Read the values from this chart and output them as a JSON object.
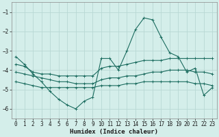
{
  "xlabel": "Humidex (Indice chaleur)",
  "bg_color": "#d4eeea",
  "grid_color": "#b8d8d4",
  "line_color": "#1a6b5e",
  "xlim": [
    -0.5,
    23.5
  ],
  "ylim": [
    -6.5,
    -0.5
  ],
  "yticks": [
    -6,
    -5,
    -4,
    -3,
    -2,
    -1
  ],
  "xticks": [
    0,
    1,
    2,
    3,
    4,
    5,
    6,
    7,
    8,
    9,
    10,
    11,
    12,
    13,
    14,
    15,
    16,
    17,
    18,
    19,
    20,
    21,
    22,
    23
  ],
  "series": {
    "line1": {
      "x": [
        0,
        1,
        2,
        3,
        4,
        5,
        6,
        7,
        8,
        9,
        10,
        11,
        12,
        13,
        14,
        15,
        16,
        17,
        18,
        19,
        20,
        21,
        22,
        23
      ],
      "y": [
        -3.3,
        -3.7,
        -4.2,
        -4.6,
        -5.1,
        -5.5,
        -5.8,
        -6.0,
        -5.6,
        -5.4,
        -3.4,
        -3.4,
        -4.0,
        -3.0,
        -1.9,
        -1.3,
        -1.4,
        -2.3,
        -3.1,
        -3.3,
        -4.1,
        -3.9,
        -5.3,
        -4.9
      ]
    },
    "line2": {
      "x": [
        0,
        1,
        2,
        3,
        4,
        5,
        6,
        7,
        8,
        9,
        10,
        11,
        12,
        13,
        14,
        15,
        16,
        17,
        18,
        19,
        20,
        21,
        22,
        23
      ],
      "y": [
        -3.7,
        -3.8,
        -4.1,
        -4.2,
        -4.2,
        -4.3,
        -4.3,
        -4.3,
        -4.3,
        -4.3,
        -3.9,
        -3.8,
        -3.8,
        -3.7,
        -3.6,
        -3.5,
        -3.5,
        -3.5,
        -3.4,
        -3.4,
        -3.4,
        -3.4,
        -3.4,
        -3.4
      ]
    },
    "line3": {
      "x": [
        0,
        1,
        2,
        3,
        4,
        5,
        6,
        7,
        8,
        9,
        10,
        11,
        12,
        13,
        14,
        15,
        16,
        17,
        18,
        19,
        20,
        21,
        22,
        23
      ],
      "y": [
        -4.1,
        -4.2,
        -4.3,
        -4.4,
        -4.5,
        -4.6,
        -4.6,
        -4.7,
        -4.7,
        -4.7,
        -4.5,
        -4.4,
        -4.4,
        -4.3,
        -4.3,
        -4.2,
        -4.1,
        -4.1,
        -4.0,
        -4.0,
        -4.0,
        -4.1,
        -4.1,
        -4.2
      ]
    },
    "line4": {
      "x": [
        0,
        1,
        2,
        3,
        4,
        5,
        6,
        7,
        8,
        9,
        10,
        11,
        12,
        13,
        14,
        15,
        16,
        17,
        18,
        19,
        20,
        21,
        22,
        23
      ],
      "y": [
        -4.6,
        -4.7,
        -4.8,
        -4.9,
        -4.9,
        -4.9,
        -4.9,
        -4.9,
        -4.9,
        -4.9,
        -4.8,
        -4.8,
        -4.8,
        -4.7,
        -4.7,
        -4.6,
        -4.6,
        -4.6,
        -4.6,
        -4.6,
        -4.6,
        -4.7,
        -4.7,
        -4.8
      ]
    }
  },
  "tick_fontsize": 5.5,
  "xlabel_fontsize": 6.5,
  "marker_size": 2.5,
  "linewidth": 0.8
}
